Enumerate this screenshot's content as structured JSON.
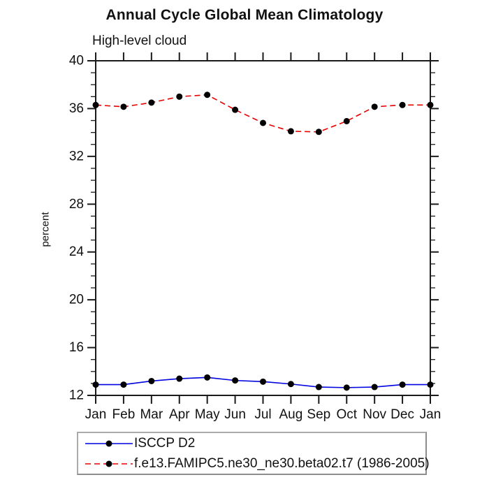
{
  "chart_data": {
    "type": "line",
    "title": "Annual Cycle Global Mean Climatology",
    "subtitle": "High-level cloud",
    "xlabel": "",
    "ylabel": "percent",
    "categories": [
      "Jan",
      "Feb",
      "Mar",
      "Apr",
      "May",
      "Jun",
      "Jul",
      "Aug",
      "Sep",
      "Oct",
      "Nov",
      "Dec",
      "Jan"
    ],
    "ylim": [
      12,
      40
    ],
    "ytick_major_step": 4,
    "ytick_minor_step": 1,
    "grid": false,
    "legend_position": "bottom-left",
    "axis_color": "#1a1a1a",
    "marker_color": "#000000",
    "series": [
      {
        "name": "ISCCP D2",
        "color": "#0000e0",
        "line_style": "solid",
        "marker": "circle",
        "values": [
          12.9,
          12.9,
          13.2,
          13.4,
          13.5,
          13.25,
          13.15,
          12.95,
          12.7,
          12.65,
          12.7,
          12.9,
          12.9
        ]
      },
      {
        "name": "f.e13.FAMIPC5.ne30_ne30.beta02.t7 (1986-2005)",
        "color": "#e60000",
        "line_style": "dashed",
        "marker": "circle",
        "values": [
          36.3,
          36.15,
          36.5,
          37.0,
          37.15,
          35.9,
          34.8,
          34.1,
          34.05,
          34.95,
          36.15,
          36.3,
          36.3
        ]
      }
    ]
  }
}
